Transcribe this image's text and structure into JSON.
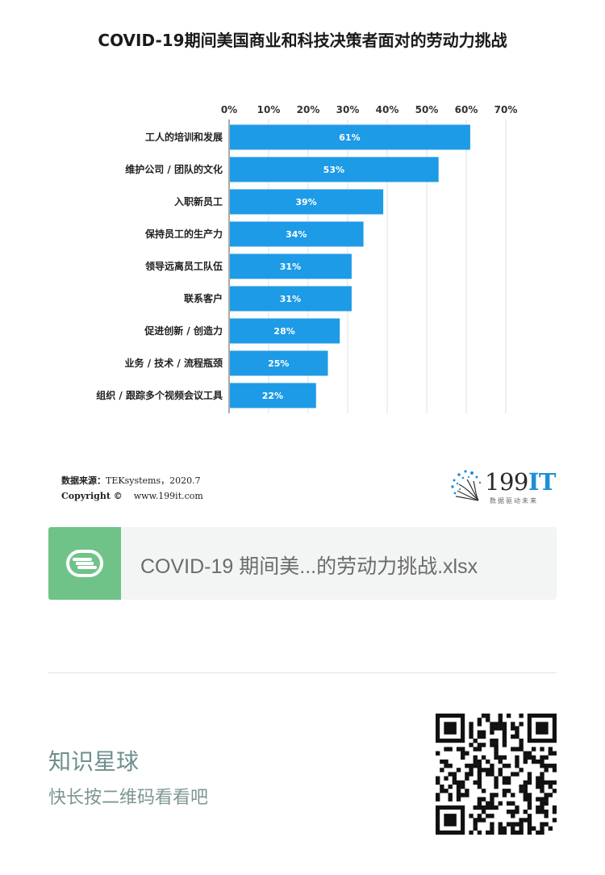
{
  "title": "COVID-19期间美国商业和科技决策者面对的劳动力挑战",
  "chart_data": {
    "type": "bar",
    "orientation": "horizontal",
    "categories": [
      "工人的培训和发展",
      "维护公司 / 团队的文化",
      "入职新员工",
      "保持员工的生产力",
      "领导远离员工队伍",
      "联系客户",
      "促进创新 / 创造力",
      "业务 / 技术 / 流程瓶颈",
      "组织 / 跟踪多个视频会议工具"
    ],
    "values": [
      61,
      53,
      39,
      34,
      31,
      31,
      28,
      25,
      22
    ],
    "data_labels": [
      "61%",
      "53%",
      "39%",
      "34%",
      "31%",
      "31%",
      "28%",
      "25%",
      "22%"
    ],
    "x_ticks": [
      "0%",
      "10%",
      "20%",
      "30%",
      "40%",
      "50%",
      "60%",
      "70%"
    ],
    "xlim": [
      0,
      70
    ],
    "axis_position": "top",
    "grid": true,
    "bar_color": "#1e9be6"
  },
  "source": {
    "label": "数据来源：",
    "text": "TEKsystems，2020.7",
    "copyright_label": "Copyright ©",
    "url": "www.199it.com"
  },
  "logo": {
    "number": "199",
    "it": "IT",
    "tagline": "数据驱动未来"
  },
  "file": {
    "icon_letter": "S",
    "name": "COVID-19 期间美...的劳动力挑战.xlsx",
    "icon_color": "#6fc389"
  },
  "planet": {
    "title": "知识星球",
    "subtitle": "快长按二维码看看吧"
  }
}
